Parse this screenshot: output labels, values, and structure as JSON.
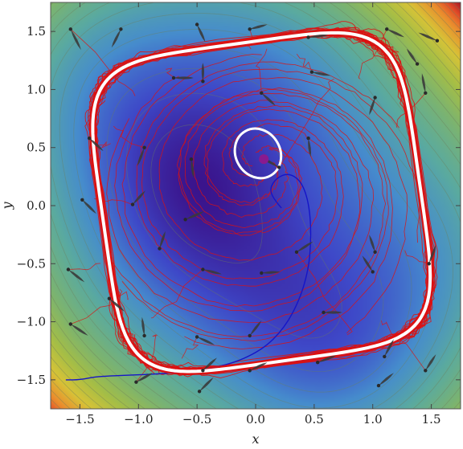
{
  "chart_data": {
    "type": "contour-vector-trajectory",
    "title": "",
    "xlabel": "x",
    "ylabel": "y",
    "xlim": [
      -1.75,
      1.75
    ],
    "ylim": [
      -1.75,
      1.75
    ],
    "xticks": [
      -1.5,
      -1.0,
      -0.5,
      0.0,
      0.5,
      1.0,
      1.5
    ],
    "yticks": [
      -1.5,
      -1.0,
      -0.5,
      0.0,
      0.5,
      1.0,
      1.5
    ],
    "xtick_labels": [
      "−1.5",
      "−1.0",
      "−0.5",
      "0.0",
      "0.5",
      "1.0",
      "1.5"
    ],
    "ytick_labels": [
      "−1.5",
      "−1.0",
      "−0.5",
      "0.0",
      "0.5",
      "1.0",
      "1.5"
    ],
    "grid": false,
    "legend": "none",
    "colors": {
      "limit_cycle": "#ffffff",
      "noisy_trajectories": "#dd1111",
      "single_trajectory": "#1515c8",
      "fixed_point": "#8a1a8f",
      "arrows": "#3a3a3a",
      "contour_lines": "#6d7f5a"
    },
    "fixed_point": {
      "x": 0.07,
      "y": 0.4
    },
    "small_cycle": {
      "center": [
        0.02,
        0.45
      ],
      "rx": 0.19,
      "ry": 0.22,
      "tilt_deg": -30
    },
    "large_cycle": {
      "half_width": 1.36,
      "half_height": 1.38,
      "rotation_deg": 8,
      "squareness_exponent": 5
    },
    "blue_trajectory": [
      [
        0.22,
        -0.02
      ],
      [
        0.15,
        0.06
      ],
      [
        0.12,
        0.15
      ],
      [
        0.18,
        0.24
      ],
      [
        0.28,
        0.28
      ],
      [
        0.38,
        0.22
      ],
      [
        0.44,
        0.08
      ],
      [
        0.47,
        -0.12
      ],
      [
        0.47,
        -0.35
      ],
      [
        0.45,
        -0.55
      ],
      [
        0.38,
        -0.8
      ],
      [
        0.25,
        -1.05
      ],
      [
        0.05,
        -1.25
      ],
      [
        -0.25,
        -1.38
      ],
      [
        -0.65,
        -1.44
      ],
      [
        -1.05,
        -1.46
      ],
      [
        -1.35,
        -1.47
      ],
      [
        -1.5,
        -1.5
      ],
      [
        -1.62,
        -1.5
      ]
    ],
    "vectors": [
      {
        "x": -1.58,
        "y": 1.52,
        "u": 0.09,
        "v": -0.18
      },
      {
        "x": -1.15,
        "y": 1.52,
        "u": -0.08,
        "v": -0.16
      },
      {
        "x": -0.7,
        "y": 1.1,
        "u": 0.17,
        "v": 0.0
      },
      {
        "x": -0.5,
        "y": 1.56,
        "u": 0.07,
        "v": -0.15
      },
      {
        "x": -0.05,
        "y": 1.52,
        "u": 0.15,
        "v": 0.04
      },
      {
        "x": 0.45,
        "y": 1.45,
        "u": 0.17,
        "v": 0.02
      },
      {
        "x": 1.12,
        "y": 1.52,
        "u": 0.15,
        "v": -0.07
      },
      {
        "x": 1.55,
        "y": 1.42,
        "u": -0.16,
        "v": 0.07
      },
      {
        "x": 0.48,
        "y": 1.15,
        "u": 0.16,
        "v": -0.03
      },
      {
        "x": -0.45,
        "y": 1.07,
        "u": 0.0,
        "v": 0.16
      },
      {
        "x": 0.05,
        "y": 0.97,
        "u": 0.12,
        "v": -0.11
      },
      {
        "x": 1.38,
        "y": 1.22,
        "u": -0.09,
        "v": 0.13
      },
      {
        "x": 1.45,
        "y": 0.97,
        "u": -0.03,
        "v": 0.17
      },
      {
        "x": 1.02,
        "y": 0.93,
        "u": -0.05,
        "v": -0.15
      },
      {
        "x": -1.42,
        "y": 0.58,
        "u": 0.12,
        "v": -0.11
      },
      {
        "x": -1.48,
        "y": 0.05,
        "u": 0.12,
        "v": -0.12
      },
      {
        "x": -0.95,
        "y": 0.5,
        "u": -0.06,
        "v": -0.16
      },
      {
        "x": -0.55,
        "y": 0.4,
        "u": 0.02,
        "v": -0.16
      },
      {
        "x": 0.2,
        "y": 0.33,
        "u": -0.16,
        "v": 0.09
      },
      {
        "x": 0.45,
        "y": 0.58,
        "u": 0.02,
        "v": -0.16
      },
      {
        "x": -1.05,
        "y": 0.01,
        "u": 0.11,
        "v": 0.12
      },
      {
        "x": -0.6,
        "y": -0.12,
        "u": 0.16,
        "v": 0.07
      },
      {
        "x": 0.35,
        "y": -0.4,
        "u": 0.14,
        "v": 0.09
      },
      {
        "x": 1.0,
        "y": -0.57,
        "u": -0.09,
        "v": 0.14
      },
      {
        "x": -1.6,
        "y": -0.55,
        "u": 0.14,
        "v": -0.11
      },
      {
        "x": -0.82,
        "y": -0.37,
        "u": 0.05,
        "v": 0.15
      },
      {
        "x": -0.45,
        "y": -0.55,
        "u": 0.16,
        "v": -0.04
      },
      {
        "x": 0.05,
        "y": -0.58,
        "u": 0.16,
        "v": 0.01
      },
      {
        "x": 1.48,
        "y": -0.5,
        "u": 0.06,
        "v": 0.16
      },
      {
        "x": 1.02,
        "y": -0.4,
        "u": -0.05,
        "v": 0.15
      },
      {
        "x": -1.25,
        "y": -0.8,
        "u": 0.13,
        "v": -0.11
      },
      {
        "x": 0.58,
        "y": -0.92,
        "u": 0.16,
        "v": 0.0
      },
      {
        "x": -1.58,
        "y": -1.02,
        "u": 0.15,
        "v": -0.1
      },
      {
        "x": -0.95,
        "y": -1.12,
        "u": -0.02,
        "v": 0.16
      },
      {
        "x": -0.5,
        "y": -1.13,
        "u": 0.15,
        "v": -0.07
      },
      {
        "x": -0.05,
        "y": -1.12,
        "u": 0.1,
        "v": 0.13
      },
      {
        "x": 0.53,
        "y": -1.35,
        "u": 0.16,
        "v": 0.06
      },
      {
        "x": -0.48,
        "y": -1.6,
        "u": 0.12,
        "v": 0.12
      },
      {
        "x": -1.02,
        "y": -1.52,
        "u": 0.14,
        "v": 0.08
      },
      {
        "x": -0.45,
        "y": -1.42,
        "u": 0.12,
        "v": 0.11
      },
      {
        "x": -0.05,
        "y": -1.42,
        "u": 0.15,
        "v": 0.07
      },
      {
        "x": 1.1,
        "y": -1.3,
        "u": 0.08,
        "v": 0.15
      },
      {
        "x": 1.45,
        "y": -1.42,
        "u": 0.09,
        "v": 0.14
      },
      {
        "x": 1.05,
        "y": -1.55,
        "u": 0.13,
        "v": 0.11
      }
    ]
  }
}
